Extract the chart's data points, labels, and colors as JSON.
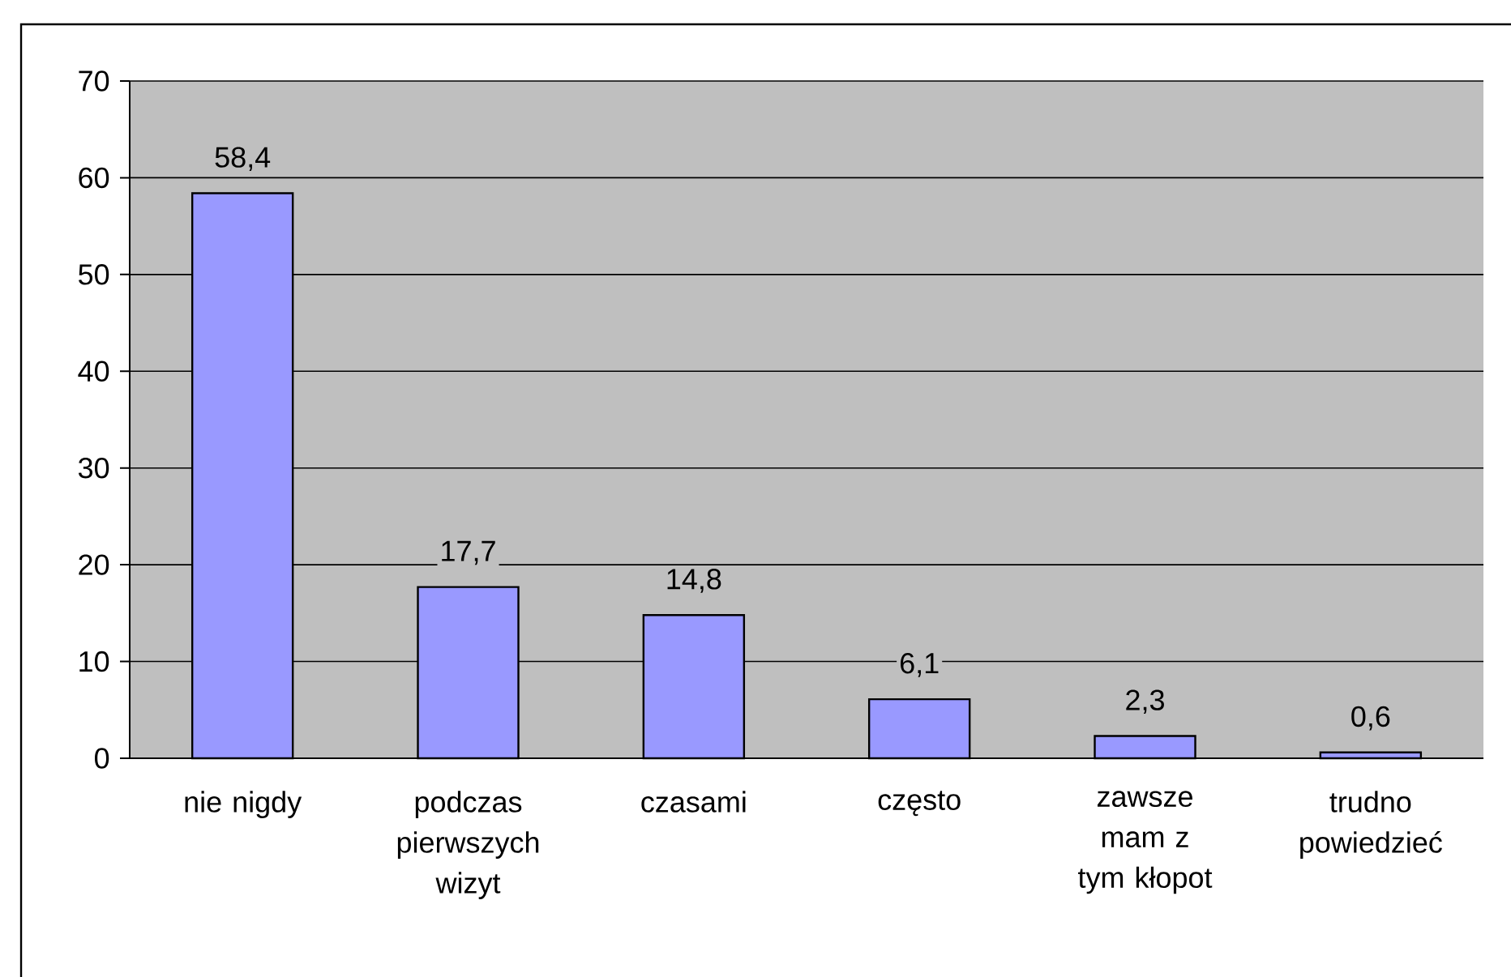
{
  "chart_data": {
    "type": "bar",
    "categories": [
      "nie nigdy",
      "podczas pierwszych wizyt",
      "czasami",
      "często",
      "zawsze mam z tym kłopot",
      "trudno powiedzieć"
    ],
    "values": [
      58.4,
      17.7,
      14.8,
      6.1,
      2.3,
      0.6
    ],
    "value_labels": [
      "58,4",
      "17,7",
      "14,8",
      "6,1",
      "2,3",
      "0,6"
    ],
    "color": "#9999ff",
    "ylim": [
      0,
      70
    ],
    "yticks": [
      0,
      10,
      20,
      30,
      40,
      50,
      60,
      70
    ],
    "grid": "y"
  }
}
